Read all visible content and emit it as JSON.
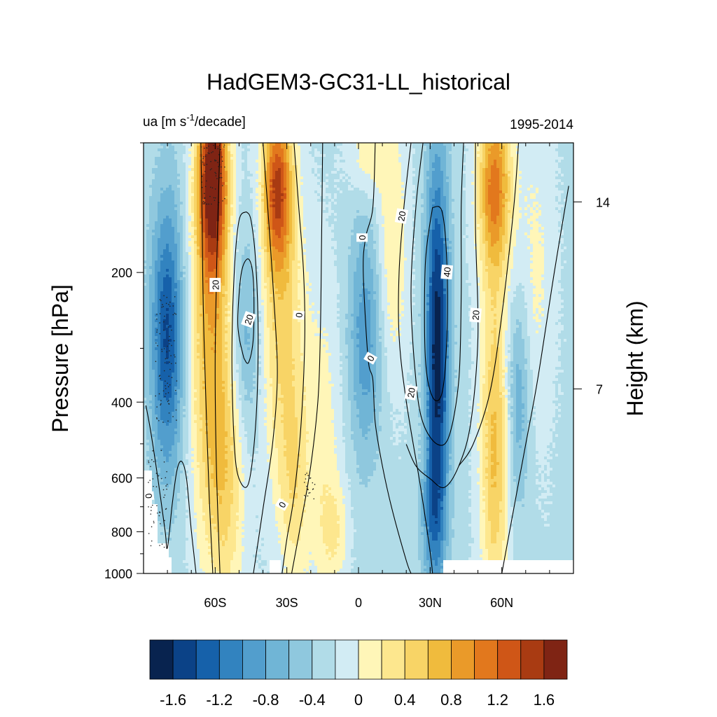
{
  "chart_data": {
    "type": "heatmap",
    "title": "HadGEM3-GC31-LL_historical",
    "left_subtitle": "ua [m s",
    "left_subtitle_sup": "-1",
    "left_subtitle_tail": "/decade]",
    "right_subtitle": "1995-2014",
    "ylabel": "Pressure [hPa]",
    "ylabel_right": "Height (km)",
    "x_ticks": [
      {
        "lat": -60,
        "label": "60S"
      },
      {
        "lat": -30,
        "label": "30S"
      },
      {
        "lat": 0,
        "label": "0"
      },
      {
        "lat": 30,
        "label": "30N"
      },
      {
        "lat": 60,
        "label": "60N"
      }
    ],
    "xlim": [
      -90,
      90
    ],
    "y_ticks": [
      {
        "p": 200,
        "label": "200"
      },
      {
        "p": 400,
        "label": "400"
      },
      {
        "p": 600,
        "label": "600"
      },
      {
        "p": 800,
        "label": "800"
      },
      {
        "p": 1000,
        "label": "1000"
      }
    ],
    "ylim_hpa": [
      1000,
      100
    ],
    "y_scale": "log",
    "right_ticks": [
      {
        "km": 14,
        "label": "14"
      },
      {
        "km": 7,
        "label": "7"
      }
    ],
    "colorbar": {
      "levels": [
        -1.8,
        -1.6,
        -1.4,
        -1.2,
        -1.0,
        -0.8,
        -0.6,
        -0.4,
        -0.2,
        0,
        0.2,
        0.4,
        0.6,
        0.8,
        1.0,
        1.2,
        1.4,
        1.6,
        1.8
      ],
      "colors": [
        "#08234f",
        "#0b4287",
        "#1661aa",
        "#3283bf",
        "#529ecd",
        "#70b5d6",
        "#8fc8de",
        "#b1dce8",
        "#d2ecf4",
        "#fff6b8",
        "#fde78e",
        "#f8d466",
        "#f0bb3d",
        "#ea9a29",
        "#e2781d",
        "#cf5617",
        "#a93b12",
        "#7f2414"
      ],
      "tick_labels": [
        "-1.6",
        "-1.2",
        "-0.8",
        "-0.4",
        "0",
        "0.4",
        "0.8",
        "1.2",
        "1.6"
      ]
    },
    "contour_labels": [
      "20",
      "20",
      "0",
      "0",
      "0",
      "20",
      "40",
      "20",
      "20",
      "0",
      "0"
    ]
  }
}
